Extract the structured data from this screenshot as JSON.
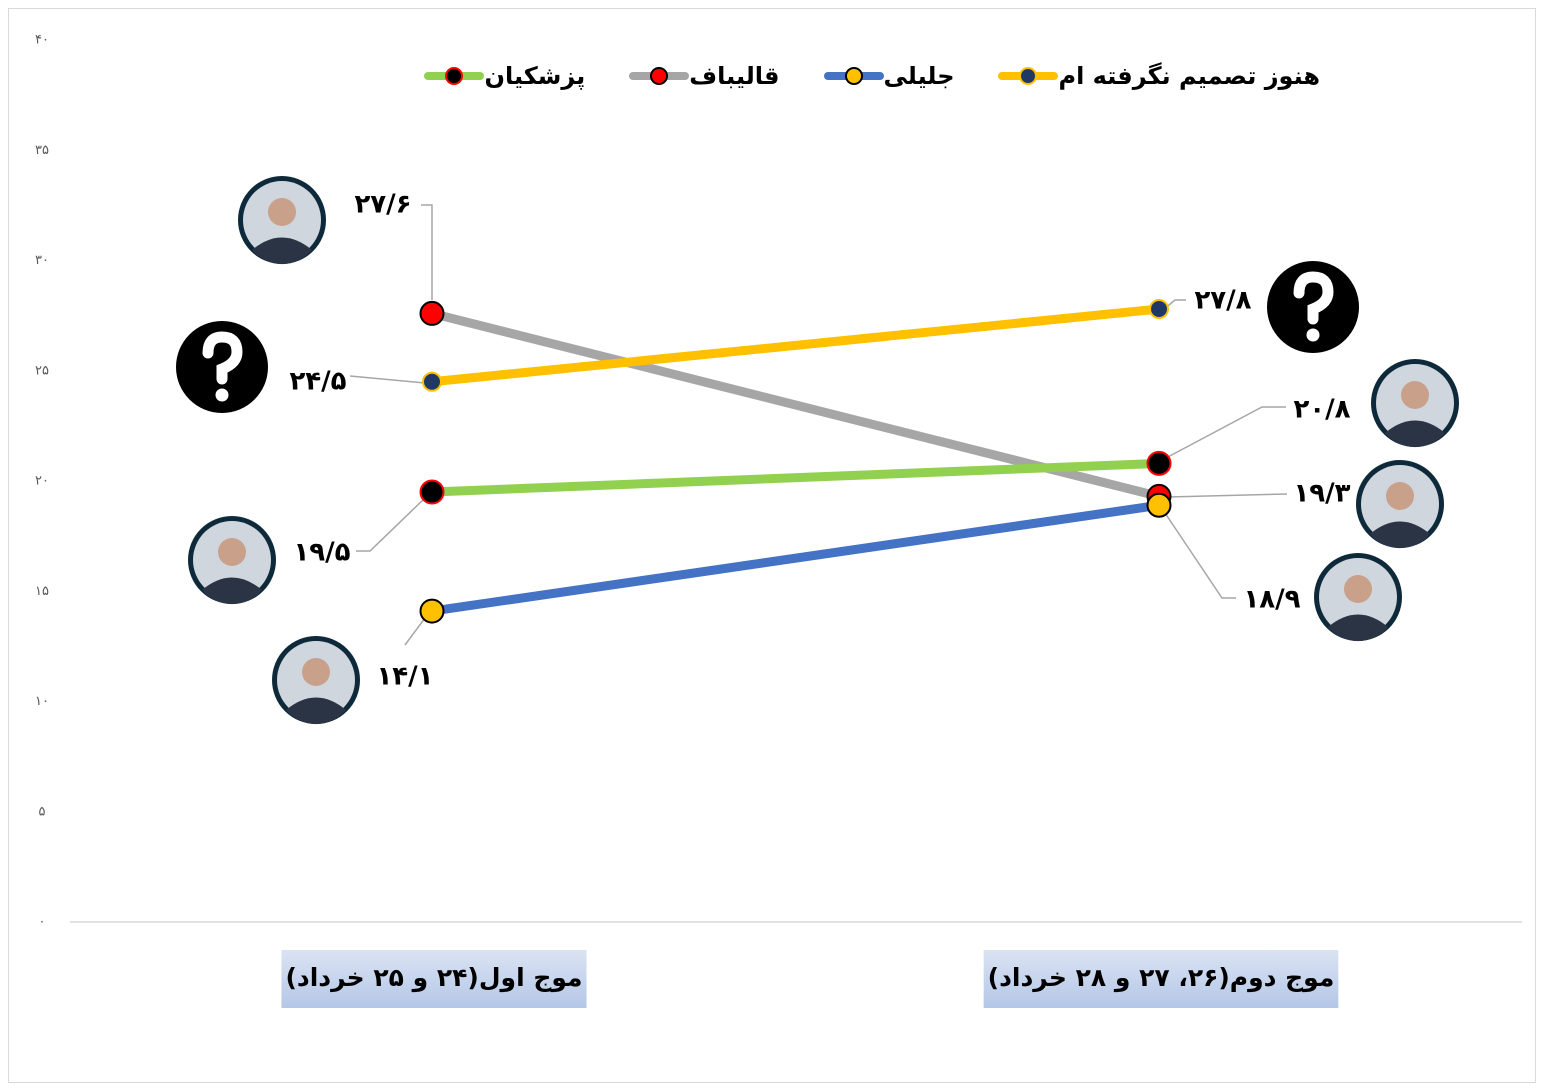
{
  "chart_data": {
    "type": "line",
    "categories": [
      "موج اول(۲۴ و ۲۵ خرداد)",
      "موج دوم(۲۶، ۲۷ و ۲۸ خرداد)"
    ],
    "ylim": [
      0,
      40
    ],
    "yticks": [
      {
        "value": 0,
        "label": "۰"
      },
      {
        "value": 5,
        "label": "۵"
      },
      {
        "value": 10,
        "label": "۱۰"
      },
      {
        "value": 15,
        "label": "۱۵"
      },
      {
        "value": 20,
        "label": "۲۰"
      },
      {
        "value": 25,
        "label": "۲۵"
      },
      {
        "value": 30,
        "label": "۳۰"
      },
      {
        "value": 35,
        "label": "۳۵"
      },
      {
        "value": 40,
        "label": "۴۰"
      }
    ],
    "series": [
      {
        "name": "هنوز تصمیم نگرفته ام",
        "color": "#FFC000",
        "marker_color": "#203864",
        "marker_edge": "#FFC000",
        "values": [
          24.5,
          27.8
        ],
        "value_labels": [
          "۲۴/۵",
          "۲۷/۸"
        ]
      },
      {
        "name": "جلیلی",
        "color": "#4472C4",
        "marker_color": "#FFC000",
        "marker_edge": "#000000",
        "values": [
          14.1,
          18.9
        ],
        "value_labels": [
          "۱۴/۱",
          "۱۸/۹"
        ]
      },
      {
        "name": "قالیباف",
        "color": "#A6A6A6",
        "marker_color": "#FF0000",
        "marker_edge": "#000000",
        "values": [
          27.6,
          19.3
        ],
        "value_labels": [
          "۲۷/۶",
          "۱۹/۳"
        ]
      },
      {
        "name": "پزشکیان",
        "color": "#92D050",
        "marker_color": "#000000",
        "marker_edge": "#FF0000",
        "values": [
          19.5,
          20.8
        ],
        "value_labels": [
          "۱۹/۵",
          "۲۰/۸"
        ]
      }
    ]
  }
}
